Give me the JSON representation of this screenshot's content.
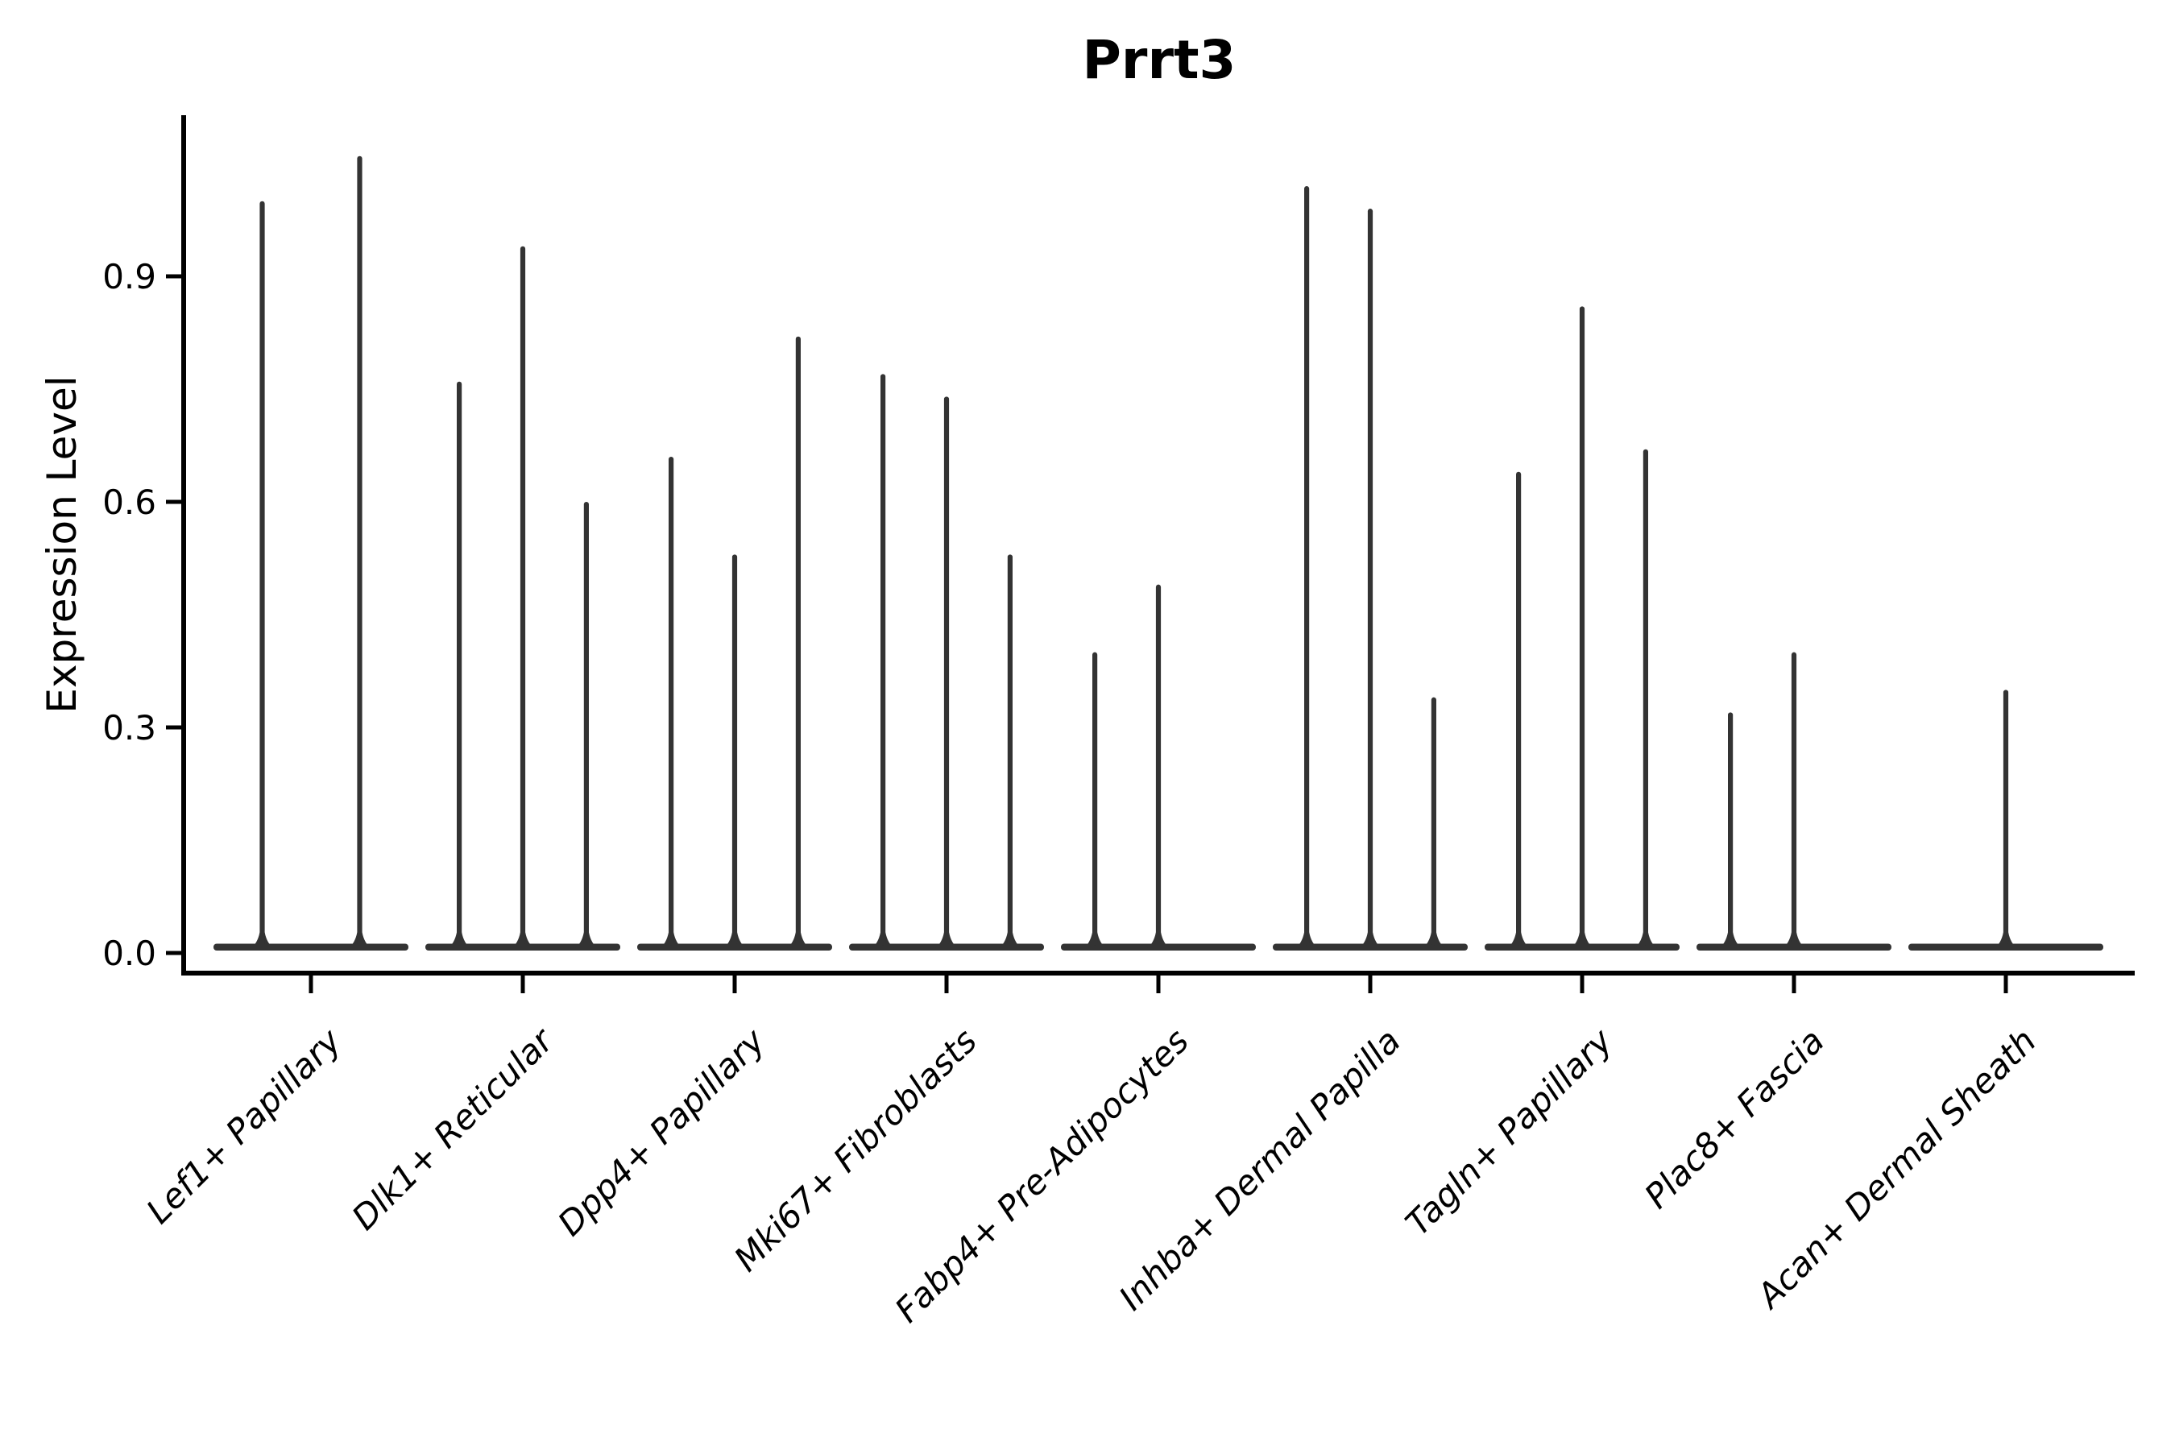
{
  "chart_data": {
    "type": "violin",
    "title": "Prrt3",
    "ylabel": "Expression Level",
    "xlabel": "",
    "ylim": [
      -0.03,
      1.11
    ],
    "yticks": [
      0.0,
      0.3,
      0.6,
      0.9
    ],
    "ytick_labels": [
      "0.0",
      "0.3",
      "0.6",
      "0.9"
    ],
    "grid": false,
    "legend": null,
    "violin_width": 0.92,
    "colors": {
      "violin": "#333333",
      "axis": "#000000",
      "text": "#000000",
      "background": "#ffffff"
    },
    "categories": [
      "Lef1+ Papillary",
      "Dlk1+ Reticular",
      "Dpp4+ Papillary",
      "Mki67+ Fibroblasts",
      "Fabp4+ Pre-Adipocytes",
      "Inhba+ Dermal Papilla",
      "Tagln+ Papillary",
      "Plac8+ Fascia",
      "Acan+ Dermal Sheath"
    ],
    "series": [
      {
        "category": "Lef1+ Papillary",
        "spikes": [
          {
            "offset": -0.23,
            "peak": 1.0
          },
          {
            "offset": 0.23,
            "peak": 1.06
          }
        ]
      },
      {
        "category": "Dlk1+ Reticular",
        "spikes": [
          {
            "offset": -0.3,
            "peak": 0.76
          },
          {
            "offset": 0.0,
            "peak": 0.94
          },
          {
            "offset": 0.3,
            "peak": 0.6
          }
        ]
      },
      {
        "category": "Dpp4+ Papillary",
        "spikes": [
          {
            "offset": -0.3,
            "peak": 0.66
          },
          {
            "offset": 0.0,
            "peak": 0.53
          },
          {
            "offset": 0.3,
            "peak": 0.82
          }
        ]
      },
      {
        "category": "Mki67+ Fibroblasts",
        "spikes": [
          {
            "offset": -0.3,
            "peak": 0.77
          },
          {
            "offset": 0.0,
            "peak": 0.74
          },
          {
            "offset": 0.3,
            "peak": 0.53
          }
        ]
      },
      {
        "category": "Fabp4+ Pre-Adipocytes",
        "spikes": [
          {
            "offset": -0.3,
            "peak": 0.4
          },
          {
            "offset": 0.0,
            "peak": 0.49
          }
        ]
      },
      {
        "category": "Inhba+ Dermal Papilla",
        "spikes": [
          {
            "offset": -0.3,
            "peak": 1.02
          },
          {
            "offset": 0.0,
            "peak": 0.99
          },
          {
            "offset": 0.3,
            "peak": 0.34
          }
        ]
      },
      {
        "category": "Tagln+ Papillary",
        "spikes": [
          {
            "offset": -0.3,
            "peak": 0.64
          },
          {
            "offset": 0.0,
            "peak": 0.86
          },
          {
            "offset": 0.3,
            "peak": 0.67
          }
        ]
      },
      {
        "category": "Plac8+ Fascia",
        "spikes": [
          {
            "offset": -0.3,
            "peak": 0.32
          },
          {
            "offset": 0.0,
            "peak": 0.4
          }
        ]
      },
      {
        "category": "Acan+ Dermal Sheath",
        "spikes": [
          {
            "offset": 0.0,
            "peak": 0.35
          }
        ]
      }
    ]
  }
}
